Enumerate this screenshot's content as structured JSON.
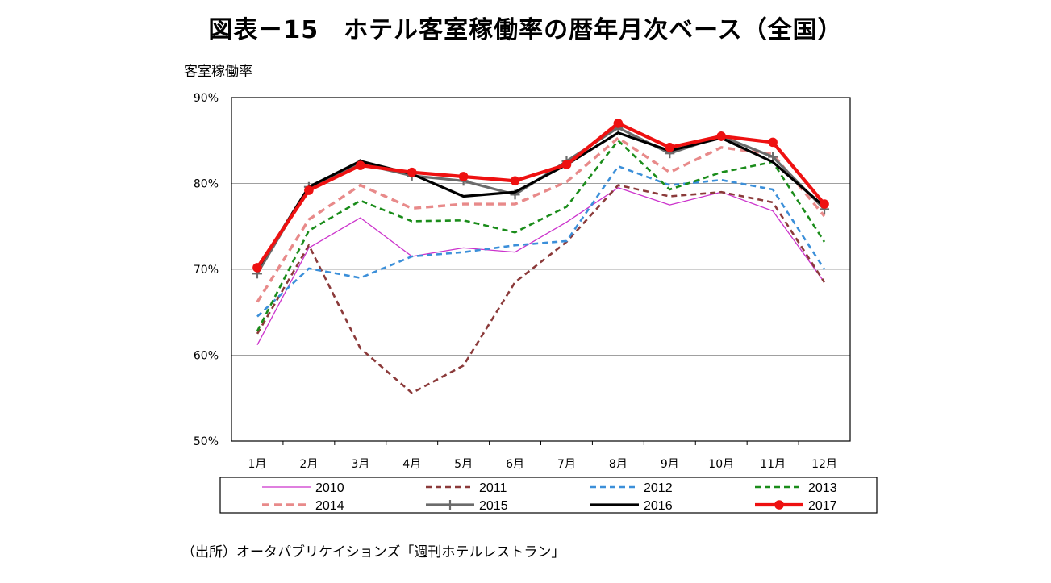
{
  "title": "図表－15　ホテル客室稼働率の暦年月次ベース（全国）",
  "source": "（出所）オータパブリケイションズ「週刊ホテルレストラン」",
  "chart_data": {
    "type": "line",
    "ylabel": "客室稼働率",
    "ylim": [
      50,
      90
    ],
    "yticks": [
      50,
      60,
      70,
      80,
      90
    ],
    "ytick_labels": [
      "50%",
      "60%",
      "70%",
      "80%",
      "90%"
    ],
    "categories": [
      "1月",
      "2月",
      "3月",
      "4月",
      "5月",
      "6月",
      "7月",
      "8月",
      "9月",
      "10月",
      "11月",
      "12月"
    ],
    "grid": true,
    "legend_position": "bottom",
    "series": [
      {
        "name": "2010",
        "color": "#cc33cc",
        "style": "solid-thin",
        "values": [
          61.2,
          72.5,
          76.0,
          71.5,
          72.5,
          72.0,
          75.5,
          79.5,
          77.5,
          79.0,
          76.8,
          68.5
        ]
      },
      {
        "name": "2011",
        "color": "#8b3a3a",
        "style": "dashed",
        "values": [
          62.5,
          72.8,
          60.8,
          55.6,
          58.8,
          68.5,
          73.2,
          79.8,
          78.5,
          79.0,
          77.8,
          68.5
        ]
      },
      {
        "name": "2012",
        "color": "#3b8fd9",
        "style": "dashed",
        "values": [
          64.5,
          70.1,
          69.0,
          71.5,
          72.0,
          72.8,
          73.3,
          82.0,
          79.8,
          80.4,
          79.3,
          70.0
        ]
      },
      {
        "name": "2013",
        "color": "#1a8c1a",
        "style": "dashed",
        "values": [
          62.8,
          74.5,
          78.0,
          75.6,
          75.7,
          74.3,
          77.3,
          85.0,
          79.3,
          81.3,
          82.5,
          73.2
        ]
      },
      {
        "name": "2014",
        "color": "#e88a8a",
        "style": "dashed-thick",
        "values": [
          66.2,
          75.8,
          79.8,
          77.1,
          77.6,
          77.6,
          80.2,
          85.3,
          81.3,
          84.2,
          83.4,
          76.2
        ]
      },
      {
        "name": "2015",
        "color": "#6b6b6b",
        "style": "marker-plus",
        "values": [
          69.5,
          79.6,
          82.3,
          80.9,
          80.3,
          78.7,
          82.6,
          86.5,
          83.5,
          85.5,
          83.1,
          77.0
        ]
      },
      {
        "name": "2016",
        "color": "#000000",
        "style": "solid-thick",
        "values": [
          70.0,
          79.6,
          82.6,
          81.1,
          78.5,
          79.0,
          82.2,
          85.9,
          83.8,
          85.3,
          82.5,
          77.3
        ]
      },
      {
        "name": "2017",
        "color": "#ee1111",
        "style": "marker-dot",
        "values": [
          70.2,
          79.2,
          82.1,
          81.3,
          80.8,
          80.3,
          82.2,
          87.0,
          84.2,
          85.5,
          84.8,
          77.6
        ]
      }
    ]
  }
}
